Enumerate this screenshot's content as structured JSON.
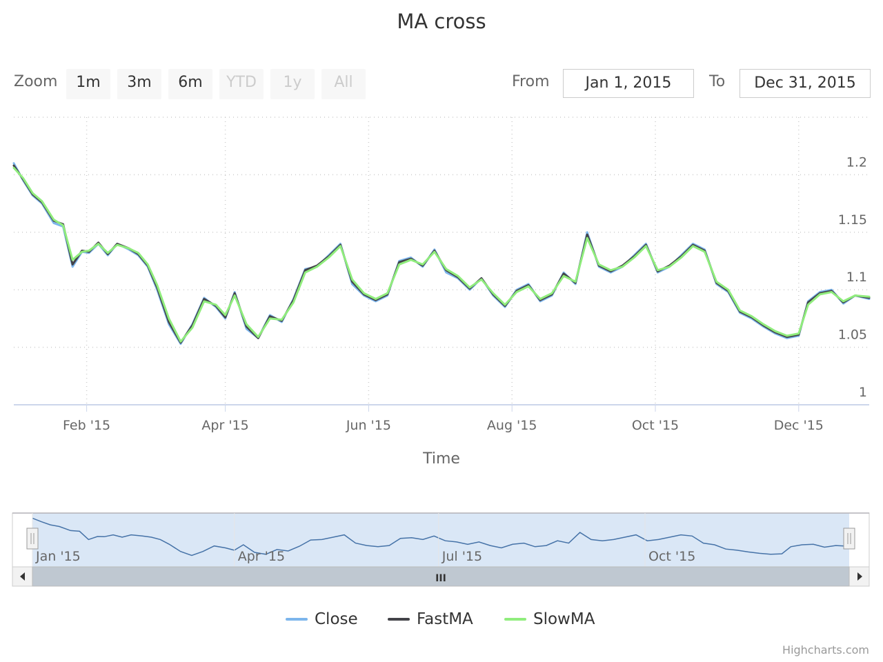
{
  "title": "MA cross",
  "toolbar": {
    "zoom_label": "Zoom",
    "buttons": [
      "1m",
      "3m",
      "6m",
      "YTD",
      "1y",
      "All"
    ],
    "disabled": [
      false,
      false,
      false,
      true,
      true,
      true
    ],
    "from_label": "From",
    "from_value": "Jan 1, 2015",
    "to_label": "To",
    "to_value": "Dec 31, 2015"
  },
  "credits": "Highcharts.com",
  "navigator": {
    "labels": [
      "Jan '15",
      "Apr '15",
      "Jul '15",
      "Oct '15"
    ],
    "grip_icon": "III"
  },
  "colors": {
    "close": "#7cb5ec",
    "fast": "#434348",
    "slow": "#90ed7d",
    "grid": "#cccccc",
    "axis": "#ccd6eb",
    "navigator_fill": "#d6e4f5",
    "navigator_line": "#4572a7",
    "scrollbar_bg": "#bfc8d1"
  },
  "chart_data": {
    "type": "line",
    "title": "MA cross",
    "xlabel": "Time",
    "ylabel": "",
    "xlim": [
      "2015-01-01",
      "2015-12-31"
    ],
    "ylim": [
      1,
      1.25
    ],
    "x_tick_labels": [
      "Feb '15",
      "Apr '15",
      "Jun '15",
      "Aug '15",
      "Oct '15",
      "Dec '15"
    ],
    "x_ticks": [
      "2015-02-01",
      "2015-04-01",
      "2015-06-01",
      "2015-08-01",
      "2015-10-01",
      "2015-12-01"
    ],
    "y_ticks": [
      1,
      1.05,
      1.1,
      1.15,
      1.2
    ],
    "y_tick_labels": [
      "1",
      "1.05",
      "1.1",
      "1.15",
      "1.2"
    ],
    "grid": true,
    "legend": "bottom-center",
    "series": [
      {
        "name": "Close",
        "x": [
          "2015-01-01",
          "2015-01-05",
          "2015-01-09",
          "2015-01-13",
          "2015-01-18",
          "2015-01-22",
          "2015-01-26",
          "2015-01-30",
          "2015-02-02",
          "2015-02-06",
          "2015-02-10",
          "2015-02-14",
          "2015-02-19",
          "2015-02-23",
          "2015-02-27",
          "2015-03-03",
          "2015-03-08",
          "2015-03-13",
          "2015-03-18",
          "2015-03-23",
          "2015-03-28",
          "2015-04-01",
          "2015-04-05",
          "2015-04-10",
          "2015-04-15",
          "2015-04-20",
          "2015-04-25",
          "2015-04-30",
          "2015-05-05",
          "2015-05-10",
          "2015-05-15",
          "2015-05-20",
          "2015-05-25",
          "2015-05-30",
          "2015-06-04",
          "2015-06-09",
          "2015-06-14",
          "2015-06-19",
          "2015-06-24",
          "2015-06-29",
          "2015-07-04",
          "2015-07-09",
          "2015-07-14",
          "2015-07-19",
          "2015-07-24",
          "2015-07-29",
          "2015-08-03",
          "2015-08-08",
          "2015-08-13",
          "2015-08-18",
          "2015-08-23",
          "2015-08-28",
          "2015-09-02",
          "2015-09-07",
          "2015-09-12",
          "2015-09-17",
          "2015-09-22",
          "2015-09-27",
          "2015-10-02",
          "2015-10-07",
          "2015-10-12",
          "2015-10-17",
          "2015-10-22",
          "2015-10-27",
          "2015-11-01",
          "2015-11-06",
          "2015-11-11",
          "2015-11-16",
          "2015-11-21",
          "2015-11-26",
          "2015-12-01",
          "2015-12-05",
          "2015-12-10",
          "2015-12-15",
          "2015-12-20",
          "2015-12-25",
          "2015-12-31"
        ],
        "values": [
          1.21,
          1.195,
          1.182,
          1.175,
          1.158,
          1.155,
          1.12,
          1.133,
          1.132,
          1.14,
          1.13,
          1.14,
          1.135,
          1.13,
          1.12,
          1.1,
          1.07,
          1.053,
          1.07,
          1.093,
          1.085,
          1.075,
          1.098,
          1.066,
          1.058,
          1.078,
          1.072,
          1.092,
          1.118,
          1.12,
          1.13,
          1.14,
          1.105,
          1.095,
          1.09,
          1.095,
          1.125,
          1.128,
          1.12,
          1.135,
          1.115,
          1.11,
          1.1,
          1.11,
          1.095,
          1.085,
          1.1,
          1.105,
          1.09,
          1.095,
          1.115,
          1.105,
          1.15,
          1.12,
          1.115,
          1.12,
          1.13,
          1.14,
          1.115,
          1.12,
          1.13,
          1.14,
          1.135,
          1.105,
          1.098,
          1.08,
          1.075,
          1.068,
          1.062,
          1.058,
          1.06,
          1.09,
          1.098,
          1.1,
          1.088,
          1.095,
          1.092
        ]
      },
      {
        "name": "FastMA",
        "x": [
          "2015-01-01",
          "2015-01-05",
          "2015-01-09",
          "2015-01-13",
          "2015-01-18",
          "2015-01-22",
          "2015-01-26",
          "2015-01-30",
          "2015-02-02",
          "2015-02-06",
          "2015-02-10",
          "2015-02-14",
          "2015-02-19",
          "2015-02-23",
          "2015-02-27",
          "2015-03-03",
          "2015-03-08",
          "2015-03-13",
          "2015-03-18",
          "2015-03-23",
          "2015-03-28",
          "2015-04-01",
          "2015-04-05",
          "2015-04-10",
          "2015-04-15",
          "2015-04-20",
          "2015-04-25",
          "2015-04-30",
          "2015-05-05",
          "2015-05-10",
          "2015-05-15",
          "2015-05-20",
          "2015-05-25",
          "2015-05-30",
          "2015-06-04",
          "2015-06-09",
          "2015-06-14",
          "2015-06-19",
          "2015-06-24",
          "2015-06-29",
          "2015-07-04",
          "2015-07-09",
          "2015-07-14",
          "2015-07-19",
          "2015-07-24",
          "2015-07-29",
          "2015-08-03",
          "2015-08-08",
          "2015-08-13",
          "2015-08-18",
          "2015-08-23",
          "2015-08-28",
          "2015-09-02",
          "2015-09-07",
          "2015-09-12",
          "2015-09-17",
          "2015-09-22",
          "2015-09-27",
          "2015-10-02",
          "2015-10-07",
          "2015-10-12",
          "2015-10-17",
          "2015-10-22",
          "2015-10-27",
          "2015-11-01",
          "2015-11-06",
          "2015-11-11",
          "2015-11-16",
          "2015-11-21",
          "2015-11-26",
          "2015-12-01",
          "2015-12-05",
          "2015-12-10",
          "2015-12-15",
          "2015-12-20",
          "2015-12-25",
          "2015-12-31"
        ],
        "values": [
          1.208,
          1.196,
          1.183,
          1.176,
          1.16,
          1.157,
          1.122,
          1.134,
          1.133,
          1.141,
          1.131,
          1.14,
          1.136,
          1.131,
          1.121,
          1.102,
          1.072,
          1.054,
          1.069,
          1.092,
          1.086,
          1.076,
          1.097,
          1.068,
          1.058,
          1.077,
          1.073,
          1.091,
          1.117,
          1.121,
          1.129,
          1.139,
          1.107,
          1.096,
          1.091,
          1.096,
          1.124,
          1.127,
          1.121,
          1.134,
          1.117,
          1.111,
          1.101,
          1.11,
          1.096,
          1.086,
          1.099,
          1.104,
          1.091,
          1.096,
          1.114,
          1.106,
          1.148,
          1.121,
          1.116,
          1.121,
          1.129,
          1.139,
          1.116,
          1.121,
          1.129,
          1.139,
          1.134,
          1.106,
          1.099,
          1.081,
          1.076,
          1.069,
          1.063,
          1.059,
          1.061,
          1.089,
          1.097,
          1.099,
          1.089,
          1.095,
          1.093
        ]
      },
      {
        "name": "SlowMA",
        "x": [
          "2015-01-01",
          "2015-01-05",
          "2015-01-09",
          "2015-01-13",
          "2015-01-18",
          "2015-01-22",
          "2015-01-26",
          "2015-01-30",
          "2015-02-02",
          "2015-02-06",
          "2015-02-10",
          "2015-02-14",
          "2015-02-19",
          "2015-02-23",
          "2015-02-27",
          "2015-03-03",
          "2015-03-08",
          "2015-03-13",
          "2015-03-18",
          "2015-03-23",
          "2015-03-28",
          "2015-04-01",
          "2015-04-05",
          "2015-04-10",
          "2015-04-15",
          "2015-04-20",
          "2015-04-25",
          "2015-04-30",
          "2015-05-05",
          "2015-05-10",
          "2015-05-15",
          "2015-05-20",
          "2015-05-25",
          "2015-05-30",
          "2015-06-04",
          "2015-06-09",
          "2015-06-14",
          "2015-06-19",
          "2015-06-24",
          "2015-06-29",
          "2015-07-04",
          "2015-07-09",
          "2015-07-14",
          "2015-07-19",
          "2015-07-24",
          "2015-07-29",
          "2015-08-03",
          "2015-08-08",
          "2015-08-13",
          "2015-08-18",
          "2015-08-23",
          "2015-08-28",
          "2015-09-02",
          "2015-09-07",
          "2015-09-12",
          "2015-09-17",
          "2015-09-22",
          "2015-09-27",
          "2015-10-02",
          "2015-10-07",
          "2015-10-12",
          "2015-10-17",
          "2015-10-22",
          "2015-10-27",
          "2015-11-01",
          "2015-11-06",
          "2015-11-11",
          "2015-11-16",
          "2015-11-21",
          "2015-11-26",
          "2015-12-01",
          "2015-12-05",
          "2015-12-10",
          "2015-12-15",
          "2015-12-20",
          "2015-12-25",
          "2015-12-31"
        ],
        "values": [
          1.206,
          1.197,
          1.184,
          1.177,
          1.161,
          1.156,
          1.126,
          1.133,
          1.134,
          1.14,
          1.132,
          1.139,
          1.136,
          1.132,
          1.122,
          1.104,
          1.075,
          1.055,
          1.067,
          1.09,
          1.087,
          1.078,
          1.095,
          1.07,
          1.059,
          1.075,
          1.074,
          1.089,
          1.115,
          1.12,
          1.128,
          1.138,
          1.109,
          1.097,
          1.092,
          1.097,
          1.122,
          1.126,
          1.122,
          1.133,
          1.118,
          1.112,
          1.102,
          1.109,
          1.097,
          1.087,
          1.098,
          1.103,
          1.092,
          1.097,
          1.112,
          1.107,
          1.145,
          1.122,
          1.117,
          1.12,
          1.128,
          1.138,
          1.117,
          1.12,
          1.128,
          1.138,
          1.133,
          1.107,
          1.1,
          1.082,
          1.077,
          1.07,
          1.064,
          1.06,
          1.062,
          1.087,
          1.096,
          1.098,
          1.09,
          1.095,
          1.094
        ]
      }
    ]
  }
}
